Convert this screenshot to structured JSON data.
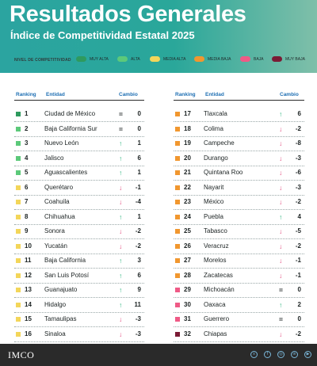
{
  "header": {
    "title": "Resultados Generales",
    "subtitle": "Índice de Competitividad Estatal 2025"
  },
  "legend": {
    "label": "Nivel de competitividad",
    "items": [
      {
        "label": "Muy alta",
        "color": "#2e9a5e"
      },
      {
        "label": "Alta",
        "color": "#5cc97a"
      },
      {
        "label": "Media alta",
        "color": "#f3d65a"
      },
      {
        "label": "Media baja",
        "color": "#f1972f"
      },
      {
        "label": "Baja",
        "color": "#ef5a86"
      },
      {
        "label": "Muy baja",
        "color": "#7a1b35"
      }
    ]
  },
  "table": {
    "headers": {
      "ranking": "Ranking",
      "entidad": "Entidad",
      "cambio": "Cambio"
    },
    "rows": [
      {
        "rank": "1",
        "name": "Ciudad de México",
        "dir": "eq",
        "change": "0",
        "color": "#2e9a5e"
      },
      {
        "rank": "2",
        "name": "Baja California Sur",
        "dir": "eq",
        "change": "0",
        "color": "#5cc97a"
      },
      {
        "rank": "3",
        "name": "Nuevo León",
        "dir": "up",
        "change": "1",
        "color": "#5cc97a"
      },
      {
        "rank": "4",
        "name": "Jalisco",
        "dir": "up",
        "change": "6",
        "color": "#5cc97a"
      },
      {
        "rank": "5",
        "name": "Aguascalientes",
        "dir": "up",
        "change": "1",
        "color": "#5cc97a"
      },
      {
        "rank": "6",
        "name": "Querétaro",
        "dir": "down",
        "change": "-1",
        "color": "#f3d65a"
      },
      {
        "rank": "7",
        "name": "Coahuila",
        "dir": "down",
        "change": "-4",
        "color": "#f3d65a"
      },
      {
        "rank": "8",
        "name": "Chihuahua",
        "dir": "up",
        "change": "1",
        "color": "#f3d65a"
      },
      {
        "rank": "9",
        "name": "Sonora",
        "dir": "down",
        "change": "-2",
        "color": "#f3d65a"
      },
      {
        "rank": "10",
        "name": "Yucatán",
        "dir": "down",
        "change": "-2",
        "color": "#f3d65a"
      },
      {
        "rank": "11",
        "name": "Baja California",
        "dir": "up",
        "change": "3",
        "color": "#f3d65a"
      },
      {
        "rank": "12",
        "name": "San Luis Potosí",
        "dir": "up",
        "change": "6",
        "color": "#f3d65a"
      },
      {
        "rank": "13",
        "name": "Guanajuato",
        "dir": "up",
        "change": "9",
        "color": "#f3d65a"
      },
      {
        "rank": "14",
        "name": "Hidalgo",
        "dir": "up",
        "change": "11",
        "color": "#f3d65a"
      },
      {
        "rank": "15",
        "name": "Tamaulipas",
        "dir": "down",
        "change": "-3",
        "color": "#f3d65a"
      },
      {
        "rank": "16",
        "name": "Sinaloa",
        "dir": "down",
        "change": "-3",
        "color": "#f3d65a"
      },
      {
        "rank": "17",
        "name": "Tlaxcala",
        "dir": "up",
        "change": "6",
        "color": "#f1972f"
      },
      {
        "rank": "18",
        "name": "Colima",
        "dir": "down",
        "change": "-2",
        "color": "#f1972f"
      },
      {
        "rank": "19",
        "name": "Campeche",
        "dir": "down",
        "change": "-8",
        "color": "#f1972f"
      },
      {
        "rank": "20",
        "name": "Durango",
        "dir": "down",
        "change": "-3",
        "color": "#f1972f"
      },
      {
        "rank": "21",
        "name": "Quintana Roo",
        "dir": "down",
        "change": "-6",
        "color": "#f1972f"
      },
      {
        "rank": "22",
        "name": "Nayarit",
        "dir": "down",
        "change": "-3",
        "color": "#f1972f"
      },
      {
        "rank": "23",
        "name": "México",
        "dir": "down",
        "change": "-2",
        "color": "#f1972f"
      },
      {
        "rank": "24",
        "name": "Puebla",
        "dir": "up",
        "change": "4",
        "color": "#f1972f"
      },
      {
        "rank": "25",
        "name": "Tabasco",
        "dir": "down",
        "change": "-5",
        "color": "#f1972f"
      },
      {
        "rank": "26",
        "name": "Veracruz",
        "dir": "down",
        "change": "-2",
        "color": "#f1972f"
      },
      {
        "rank": "27",
        "name": "Morelos",
        "dir": "down",
        "change": "-1",
        "color": "#f1972f"
      },
      {
        "rank": "28",
        "name": "Zacatecas",
        "dir": "down",
        "change": "-1",
        "color": "#f1972f"
      },
      {
        "rank": "29",
        "name": "Michoacán",
        "dir": "eq",
        "change": "0",
        "color": "#ef5a86"
      },
      {
        "rank": "30",
        "name": "Oaxaca",
        "dir": "up",
        "change": "2",
        "color": "#ef5a86"
      },
      {
        "rank": "31",
        "name": "Guerrero",
        "dir": "eq",
        "change": "0",
        "color": "#ef5a86"
      },
      {
        "rank": "32",
        "name": "Chiapas",
        "dir": "down",
        "change": "-2",
        "color": "#7a1b35"
      }
    ]
  },
  "footer": {
    "logo": "IMCO",
    "social_icons": [
      "x-icon",
      "facebook-icon",
      "instagram-icon",
      "linkedin-icon",
      "youtube-icon"
    ]
  }
}
